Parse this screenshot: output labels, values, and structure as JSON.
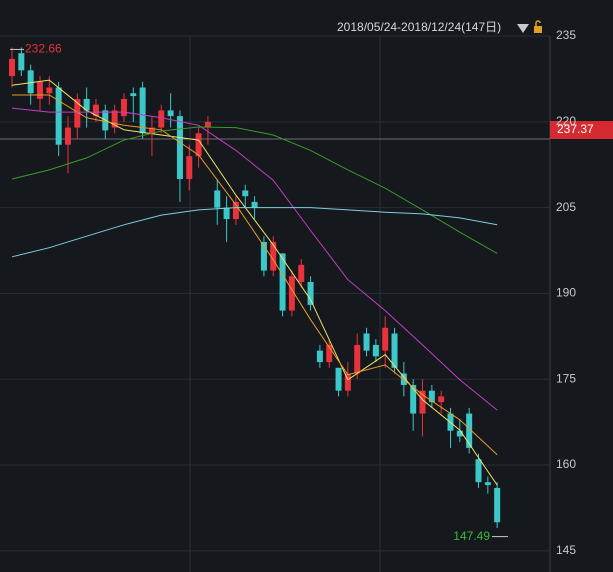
{
  "chart_data": {
    "type": "candlestick",
    "date_range": "2018/05/24-2018/12/24(147日)",
    "ylim": [
      141.3,
      241.3
    ],
    "yticks": [
      235,
      220,
      205,
      190,
      175,
      160,
      145
    ],
    "grid": true,
    "up_color": "#e8323c",
    "down_color": "#3cc8c8",
    "high_marker": 232.66,
    "low_marker": 147.49,
    "price_tag": 237.37,
    "open": [
      228,
      232,
      229,
      224,
      225,
      226,
      216,
      219,
      224,
      221,
      222,
      219,
      221,
      225,
      226,
      218,
      219,
      222,
      221,
      210,
      214,
      219,
      208,
      205,
      203,
      208,
      206,
      199,
      194,
      197,
      187,
      192,
      192,
      180,
      178,
      177,
      173,
      176,
      183,
      181,
      180,
      183,
      176,
      174,
      169,
      173,
      171,
      169,
      166,
      169,
      161,
      157,
      156
    ],
    "high": [
      233,
      233,
      230,
      228,
      228,
      227,
      221,
      225,
      226,
      224,
      223,
      223,
      225,
      226,
      227,
      221,
      223,
      225,
      222,
      216,
      219,
      221,
      210,
      207,
      207,
      209,
      207,
      200,
      200,
      197,
      194,
      196,
      193,
      181,
      182,
      177,
      178,
      183,
      184,
      182,
      186,
      184,
      178,
      175,
      175,
      174,
      173,
      170,
      168,
      170,
      162,
      158,
      157
    ],
    "low": [
      226,
      228,
      223,
      222,
      223,
      214,
      211,
      217,
      219,
      220,
      217,
      218,
      220,
      220,
      217,
      214,
      218,
      219,
      206,
      208,
      212,
      216,
      202,
      199,
      202,
      205,
      203,
      193,
      193,
      186,
      186,
      191,
      187,
      177,
      177,
      172,
      172,
      175,
      179,
      178,
      177,
      176,
      172,
      166,
      165,
      170,
      169,
      163,
      164,
      162,
      156,
      155,
      149
    ],
    "close": [
      231,
      229,
      225,
      227,
      226,
      216,
      219,
      224,
      222,
      223,
      218.5,
      222,
      224,
      224.5,
      218,
      219,
      222,
      221,
      210,
      214,
      218,
      220,
      205,
      203,
      206,
      207,
      205,
      194,
      199,
      187,
      193,
      195,
      188,
      178,
      181,
      173,
      176,
      181,
      180,
      179,
      184,
      177,
      174,
      169,
      173,
      171,
      172,
      166,
      165,
      163,
      157,
      156.5,
      150
    ],
    "series": [
      {
        "color": "#f2e46a",
        "x": [
          0,
          4,
          8,
          12,
          16,
          20,
          24,
          28,
          32,
          36,
          40,
          44,
          48,
          52
        ],
        "values": [
          226.4,
          227.3,
          222,
          218.6,
          217.7,
          216.8,
          207.2,
          198.5,
          188.9,
          174.9,
          179.3,
          171.4,
          166.1,
          156.5
        ]
      },
      {
        "color": "#e89a2a",
        "x": [
          0,
          4,
          8,
          12,
          16,
          20,
          24,
          28,
          32,
          36,
          40,
          44,
          48,
          52
        ],
        "values": [
          224.7,
          224.7,
          220.7,
          219.4,
          218.6,
          214.2,
          205.5,
          195.9,
          185.4,
          175.8,
          177.5,
          172.3,
          167.9,
          161.8
        ]
      },
      {
        "color": "#c23ec8",
        "x": [
          0,
          4,
          8,
          12,
          16,
          20,
          24,
          28,
          32,
          36,
          40,
          44,
          48,
          52
        ],
        "values": [
          222.4,
          221.7,
          221.7,
          221.7,
          220.7,
          219.4,
          215,
          209.8,
          201,
          192.4,
          187,
          181,
          174.9,
          169.6
        ]
      },
      {
        "color": "#3a9a2a",
        "x": [
          0,
          4,
          8,
          12,
          16,
          20,
          24,
          28,
          32,
          36,
          40,
          44,
          48,
          52
        ],
        "values": [
          210,
          211.6,
          213.7,
          216.8,
          218.4,
          219.1,
          219,
          217.7,
          215,
          211.6,
          208.4,
          204.6,
          200.7,
          197
        ]
      },
      {
        "color": "#7ad0e0",
        "x": [
          0,
          4,
          8,
          12,
          16,
          20,
          24,
          28,
          32,
          36,
          40,
          44,
          48,
          52
        ],
        "values": [
          196.4,
          198,
          200,
          202,
          203.7,
          204.6,
          205,
          205,
          205,
          204.6,
          204.2,
          203.9,
          203.2,
          202
        ]
      }
    ]
  }
}
